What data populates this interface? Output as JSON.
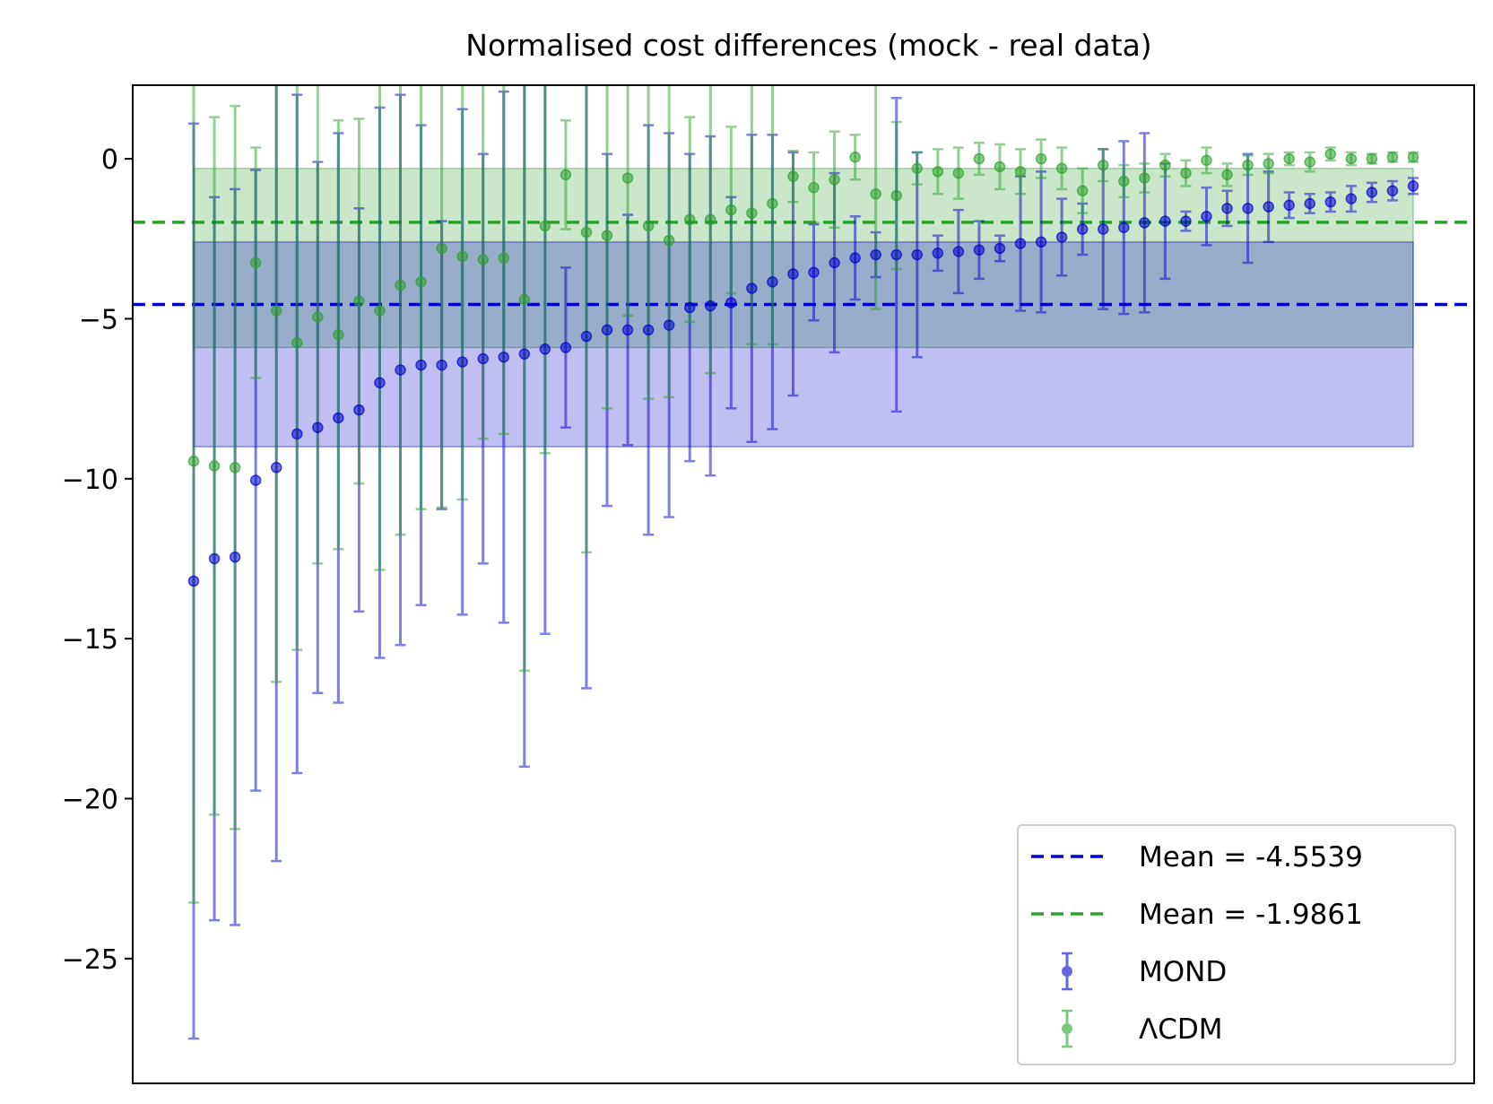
{
  "chart_data": {
    "type": "scatter",
    "title": "Normalised cost differences (mock - real data)",
    "xlabel": "",
    "ylabel": "",
    "xlim": [
      -2.95,
      61.95
    ],
    "ylim": [
      -28.9,
      2.3
    ],
    "xticks_visible": false,
    "grid": false,
    "yticks": [
      0,
      -5,
      -10,
      -15,
      -20,
      -25
    ],
    "ytick_labels": [
      "0",
      "−5",
      "−10",
      "−15",
      "−20",
      "−25"
    ],
    "legend_position": "lower right",
    "series": [
      {
        "name": "MOND",
        "color": "#0000cc",
        "x": [
          0,
          1,
          2,
          3,
          4,
          5,
          6,
          7,
          8,
          9,
          10,
          11,
          12,
          13,
          14,
          15,
          16,
          17,
          18,
          19,
          20,
          21,
          22,
          23,
          24,
          25,
          26,
          27,
          28,
          29,
          30,
          31,
          32,
          33,
          34,
          35,
          36,
          37,
          38,
          39,
          40,
          41,
          42,
          43,
          44,
          45,
          46,
          47,
          48,
          49,
          50,
          51,
          52,
          53,
          54,
          55,
          56,
          57,
          58,
          59
        ],
        "y": [
          -13.2,
          -12.5,
          -12.45,
          -10.05,
          -9.65,
          -8.6,
          -8.4,
          -8.1,
          -7.85,
          -7.0,
          -6.6,
          -6.45,
          -6.45,
          -6.35,
          -6.25,
          -6.2,
          -6.1,
          -5.95,
          -5.9,
          -5.55,
          -5.35,
          -5.35,
          -5.35,
          -5.2,
          -4.65,
          -4.6,
          -4.5,
          -4.05,
          -3.85,
          -3.6,
          -3.55,
          -3.25,
          -3.1,
          -3.0,
          -3.0,
          -3.0,
          -2.95,
          -2.9,
          -2.85,
          -2.8,
          -2.65,
          -2.6,
          -2.45,
          -2.2,
          -2.2,
          -2.15,
          -2.0,
          -1.95,
          -1.95,
          -1.8,
          -1.55,
          -1.55,
          -1.5,
          -1.45,
          -1.4,
          -1.35,
          -1.25,
          -1.05,
          -1.0,
          -0.85
        ],
        "yerr": [
          14.3,
          11.3,
          11.5,
          9.7,
          12.3,
          10.6,
          8.3,
          8.9,
          6.3,
          8.6,
          8.6,
          7.5,
          4.5,
          7.9,
          6.4,
          8.3,
          12.9,
          8.9,
          2.5,
          11.0,
          5.5,
          3.6,
          6.4,
          6.0,
          4.8,
          5.3,
          3.3,
          4.8,
          4.6,
          3.8,
          1.5,
          2.8,
          1.3,
          0.7,
          4.9,
          3.2,
          0.55,
          1.3,
          0.9,
          0.4,
          2.1,
          2.2,
          1.2,
          0.8,
          2.5,
          2.7,
          2.8,
          1.8,
          0.3,
          0.9,
          0.55,
          1.7,
          1.1,
          0.4,
          0.3,
          0.3,
          0.4,
          0.3,
          0.3,
          0.25
        ],
        "mean": -4.5539,
        "mean_label": "Mean = -4.5539",
        "band": [
          -9.0,
          -2.6
        ]
      },
      {
        "name": "ΛCDM",
        "color": "#2ca02c",
        "x": [
          0,
          1,
          2,
          3,
          4,
          5,
          6,
          7,
          8,
          9,
          10,
          11,
          12,
          13,
          14,
          15,
          16,
          17,
          18,
          19,
          20,
          21,
          22,
          23,
          24,
          25,
          26,
          27,
          28,
          29,
          30,
          31,
          32,
          33,
          34,
          35,
          36,
          37,
          38,
          39,
          40,
          41,
          42,
          43,
          44,
          45,
          46,
          47,
          48,
          49,
          50,
          51,
          52,
          53,
          54,
          55,
          56,
          57,
          58,
          59
        ],
        "y": [
          -9.45,
          -9.6,
          -9.65,
          -3.25,
          -4.75,
          -5.75,
          -4.95,
          -5.5,
          -4.45,
          -4.75,
          -3.95,
          -3.85,
          -2.8,
          -3.05,
          -3.15,
          -3.1,
          -4.4,
          -2.1,
          -0.5,
          -2.3,
          -2.4,
          -0.6,
          -2.1,
          -2.55,
          -1.9,
          -1.9,
          -1.6,
          -1.7,
          -1.4,
          -0.55,
          -0.9,
          -0.65,
          0.05,
          -1.1,
          -1.15,
          -0.3,
          -0.4,
          -0.45,
          0.0,
          -0.25,
          -0.4,
          0.0,
          -0.3,
          -1.0,
          -0.2,
          -0.7,
          -0.6,
          -0.2,
          -0.45,
          -0.05,
          -0.5,
          -0.2,
          -0.15,
          0.0,
          -0.1,
          0.15,
          0.0,
          0.0,
          0.05,
          0.05
        ],
        "yerr": [
          13.8,
          10.9,
          11.3,
          3.6,
          11.6,
          9.6,
          7.7,
          6.7,
          5.7,
          8.1,
          7.8,
          7.1,
          8.1,
          7.6,
          5.6,
          5.5,
          11.6,
          7.1,
          1.7,
          10.0,
          5.4,
          4.3,
          5.4,
          4.9,
          3.2,
          4.8,
          2.6,
          4.1,
          4.4,
          0.8,
          1.1,
          1.5,
          0.7,
          3.6,
          2.3,
          0.5,
          0.7,
          0.8,
          0.5,
          0.7,
          0.7,
          0.6,
          0.65,
          0.7,
          0.5,
          0.5,
          0.45,
          0.35,
          0.4,
          0.4,
          0.35,
          0.3,
          0.3,
          0.2,
          0.3,
          0.2,
          0.2,
          0.15,
          0.15,
          0.15
        ],
        "mean": -1.9861,
        "mean_label": "Mean = -1.9861",
        "band": [
          -5.9,
          -0.3
        ]
      }
    ]
  }
}
